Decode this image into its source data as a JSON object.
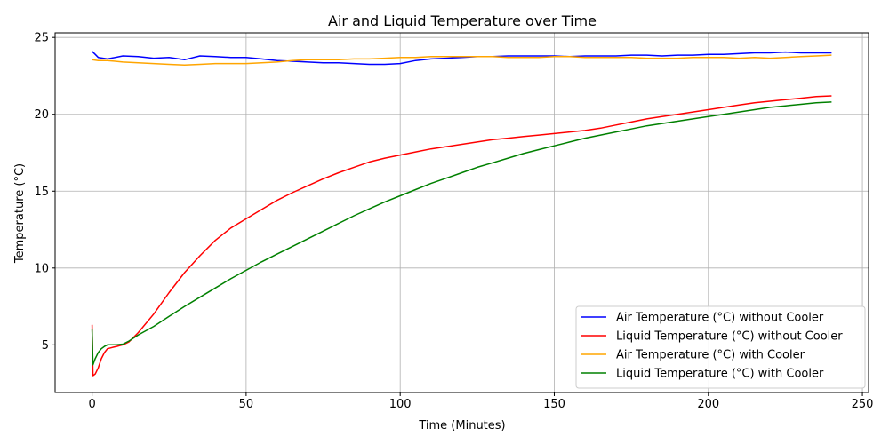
{
  "chart_data": {
    "type": "line",
    "title": "Air and Liquid Temperature over Time",
    "xlabel": "Time (Minutes)",
    "ylabel": "Temperature (°C)",
    "xlim": [
      -12,
      252
    ],
    "ylim": [
      1.9,
      25.3
    ],
    "xticks": [
      0,
      50,
      100,
      150,
      200,
      250
    ],
    "yticks": [
      5,
      10,
      15,
      20,
      25
    ],
    "grid": true,
    "legend_position": "lower-right",
    "series": [
      {
        "name": "Air Temperature (°C) without Cooler",
        "color": "#0000ff",
        "x": [
          0,
          1,
          2,
          5,
          10,
          15,
          20,
          25,
          30,
          35,
          40,
          45,
          50,
          55,
          60,
          65,
          70,
          75,
          80,
          85,
          90,
          95,
          100,
          105,
          110,
          115,
          120,
          125,
          130,
          135,
          140,
          145,
          150,
          155,
          160,
          165,
          170,
          175,
          180,
          185,
          190,
          195,
          200,
          205,
          210,
          215,
          220,
          225,
          230,
          235,
          240
        ],
        "y": [
          24.1,
          23.9,
          23.7,
          23.6,
          23.8,
          23.75,
          23.65,
          23.7,
          23.55,
          23.8,
          23.75,
          23.7,
          23.7,
          23.6,
          23.5,
          23.45,
          23.4,
          23.35,
          23.35,
          23.3,
          23.25,
          23.25,
          23.3,
          23.5,
          23.6,
          23.65,
          23.7,
          23.75,
          23.75,
          23.8,
          23.8,
          23.8,
          23.8,
          23.75,
          23.8,
          23.8,
          23.8,
          23.85,
          23.85,
          23.8,
          23.85,
          23.85,
          23.9,
          23.9,
          23.95,
          24.0,
          24.0,
          24.05,
          24.0,
          24.0,
          24.0
        ]
      },
      {
        "name": "Liquid Temperature (°C) without Cooler",
        "color": "#ff0000",
        "x": [
          0,
          0.3,
          1,
          2,
          3,
          4,
          5,
          6,
          7,
          8,
          9,
          10,
          12,
          15,
          20,
          25,
          30,
          35,
          40,
          45,
          50,
          55,
          60,
          65,
          70,
          75,
          80,
          85,
          90,
          95,
          100,
          105,
          110,
          115,
          120,
          125,
          130,
          135,
          140,
          145,
          150,
          155,
          160,
          165,
          170,
          175,
          180,
          185,
          190,
          195,
          200,
          205,
          210,
          215,
          220,
          225,
          230,
          235,
          240
        ],
        "y": [
          6.3,
          3.0,
          3.1,
          3.5,
          4.1,
          4.5,
          4.75,
          4.8,
          4.85,
          4.9,
          4.95,
          5.0,
          5.2,
          5.8,
          7.0,
          8.4,
          9.7,
          10.8,
          11.8,
          12.6,
          13.2,
          13.8,
          14.4,
          14.9,
          15.35,
          15.8,
          16.2,
          16.55,
          16.9,
          17.15,
          17.35,
          17.55,
          17.75,
          17.9,
          18.05,
          18.2,
          18.35,
          18.45,
          18.55,
          18.65,
          18.75,
          18.85,
          18.95,
          19.1,
          19.3,
          19.5,
          19.7,
          19.85,
          20.0,
          20.15,
          20.3,
          20.45,
          20.6,
          20.75,
          20.85,
          20.95,
          21.05,
          21.15,
          21.2
        ]
      },
      {
        "name": "Air Temperature (°C) with Cooler",
        "color": "#ffa500",
        "x": [
          0,
          2,
          5,
          10,
          15,
          20,
          25,
          30,
          35,
          40,
          45,
          50,
          55,
          60,
          65,
          70,
          75,
          80,
          85,
          90,
          95,
          100,
          105,
          110,
          115,
          120,
          125,
          130,
          135,
          140,
          145,
          150,
          155,
          160,
          165,
          170,
          175,
          180,
          185,
          190,
          195,
          200,
          205,
          210,
          215,
          220,
          225,
          230,
          235,
          240
        ],
        "y": [
          23.55,
          23.5,
          23.5,
          23.4,
          23.35,
          23.3,
          23.25,
          23.2,
          23.25,
          23.3,
          23.3,
          23.3,
          23.35,
          23.4,
          23.5,
          23.55,
          23.55,
          23.55,
          23.6,
          23.6,
          23.65,
          23.7,
          23.7,
          23.75,
          23.75,
          23.75,
          23.75,
          23.75,
          23.7,
          23.7,
          23.7,
          23.75,
          23.75,
          23.7,
          23.7,
          23.7,
          23.7,
          23.65,
          23.65,
          23.65,
          23.7,
          23.7,
          23.7,
          23.65,
          23.7,
          23.65,
          23.7,
          23.75,
          23.8,
          23.85
        ]
      },
      {
        "name": "Liquid Temperature (°C) with Cooler",
        "color": "#008000",
        "x": [
          0,
          0.3,
          1,
          2,
          3,
          4,
          5,
          6,
          8,
          10,
          12,
          15,
          20,
          25,
          30,
          35,
          40,
          45,
          50,
          55,
          60,
          65,
          70,
          75,
          80,
          85,
          90,
          95,
          100,
          105,
          110,
          115,
          120,
          125,
          130,
          135,
          140,
          145,
          150,
          155,
          160,
          165,
          170,
          175,
          180,
          185,
          190,
          195,
          200,
          205,
          210,
          215,
          220,
          225,
          230,
          235,
          240
        ],
        "y": [
          6.0,
          3.7,
          4.1,
          4.5,
          4.75,
          4.9,
          5.0,
          5.0,
          5.0,
          5.05,
          5.25,
          5.65,
          6.2,
          6.85,
          7.5,
          8.1,
          8.7,
          9.3,
          9.85,
          10.4,
          10.9,
          11.4,
          11.9,
          12.4,
          12.9,
          13.4,
          13.85,
          14.3,
          14.7,
          15.1,
          15.5,
          15.85,
          16.2,
          16.55,
          16.85,
          17.15,
          17.45,
          17.7,
          17.95,
          18.2,
          18.45,
          18.65,
          18.85,
          19.05,
          19.25,
          19.4,
          19.55,
          19.7,
          19.85,
          20.0,
          20.15,
          20.3,
          20.45,
          20.55,
          20.65,
          20.75,
          20.8
        ]
      }
    ]
  }
}
